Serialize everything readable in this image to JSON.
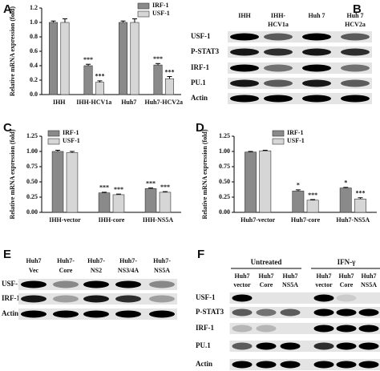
{
  "chart_data": [
    {
      "type": "bar",
      "panel": "A",
      "ylabel": "Relative mRNA expression (fold)",
      "categories": [
        "IHH",
        "IHH-HCV1a",
        "Huh7",
        "Huh7-HCV2a"
      ],
      "series": [
        {
          "name": "IRF-1",
          "color": "#8a8a8a",
          "values": [
            1.0,
            0.4,
            1.0,
            0.41
          ],
          "errors": [
            0.02,
            0.02,
            0.02,
            0.02
          ],
          "significance": [
            null,
            "***",
            null,
            "***"
          ]
        },
        {
          "name": "USF-1",
          "color": "#d6d6d6",
          "values": [
            1.0,
            0.17,
            1.0,
            0.22
          ],
          "errors": [
            0.05,
            0.02,
            0.05,
            0.03
          ],
          "significance": [
            null,
            "***",
            null,
            "***"
          ]
        }
      ],
      "ylim": [
        0,
        1.2
      ],
      "yticks": [
        {
          "value": 0,
          "label": "0.0"
        },
        0.2,
        0.4,
        0.6,
        0.8,
        {
          "value": 1,
          "label": "1.0"
        },
        1.2
      ]
    },
    {
      "type": "bar",
      "panel": "C",
      "ylabel": "Relative mRNA expression (fold)",
      "categories": [
        "IHH-vector",
        "IHH-core",
        "IHH-NS5A"
      ],
      "series": [
        {
          "name": "IRF-1",
          "color": "#8a8a8a",
          "values": [
            1.0,
            0.32,
            0.39
          ],
          "errors": [
            0.02,
            0.01,
            0.01
          ],
          "significance": [
            null,
            "***",
            "***"
          ]
        },
        {
          "name": "USF-1",
          "color": "#d6d6d6",
          "values": [
            0.98,
            0.29,
            0.33
          ],
          "errors": [
            0.02,
            0.01,
            0.01
          ],
          "significance": [
            null,
            "***",
            "***"
          ]
        }
      ],
      "ylim": [
        0,
        1.25
      ],
      "yticks": [
        {
          "value": 0,
          "label": "0.00"
        },
        0.25,
        {
          "value": 0.5,
          "label": "0.50"
        },
        0.75,
        {
          "value": 1,
          "label": "1.00"
        },
        1.25
      ]
    },
    {
      "type": "bar",
      "panel": "D",
      "ylabel": "Relative mRNA expression (fold)",
      "categories": [
        "Huh7-vector",
        "Huh7-core",
        "Huh7-NS5A"
      ],
      "series": [
        {
          "name": "IRF-1",
          "color": "#8a8a8a",
          "values": [
            0.99,
            0.35,
            0.4
          ],
          "errors": [
            0.01,
            0.02,
            0.01
          ],
          "significance": [
            null,
            "*",
            "*"
          ]
        },
        {
          "name": "USF-1",
          "color": "#d6d6d6",
          "values": [
            1.01,
            0.2,
            0.22
          ],
          "errors": [
            0.01,
            0.01,
            0.02
          ],
          "significance": [
            null,
            "***",
            "***"
          ]
        }
      ],
      "ylim": [
        0,
        1.25
      ],
      "yticks": [
        {
          "value": 0,
          "label": "0.00"
        },
        0.25,
        {
          "value": 0.5,
          "label": "0.50"
        },
        0.75,
        {
          "value": 1,
          "label": "1.00"
        },
        1.25
      ]
    }
  ],
  "blots": [
    {
      "panel": "B",
      "lanes": [
        [
          "IHH"
        ],
        [
          "IHH-",
          "HCV1a"
        ],
        [
          "Huh 7"
        ],
        [
          "Huh 7",
          "HCV2a"
        ]
      ],
      "rows": [
        "USF-1",
        "P-STAT3",
        "IRF-1",
        "PU.1",
        "Actin"
      ]
    },
    {
      "panel": "E",
      "lanes": [
        [
          "Huh7",
          "Vec"
        ],
        [
          "Huh7-",
          "Core"
        ],
        [
          "Huh7-",
          "NS2"
        ],
        [
          "Huh7-",
          "NS3/4A"
        ],
        [
          "Huh7-",
          "NS5A"
        ]
      ],
      "rows": [
        "USF-1",
        "IRF-1",
        "Actin"
      ]
    },
    {
      "panel": "F",
      "groups": [
        "Untreated",
        "IFN-γ"
      ],
      "lanes": [
        [
          "Huh7",
          "vector"
        ],
        [
          "Huh7",
          "Core"
        ],
        [
          "Huh7",
          "NS5A"
        ],
        [
          "Huh7",
          "vector"
        ],
        [
          "Huh7",
          "Core"
        ],
        [
          "Huh7",
          "NS5A"
        ]
      ],
      "rows": [
        "USF-1",
        "P-STAT3",
        "IRF-1",
        "PU.1",
        "Actin"
      ]
    }
  ]
}
